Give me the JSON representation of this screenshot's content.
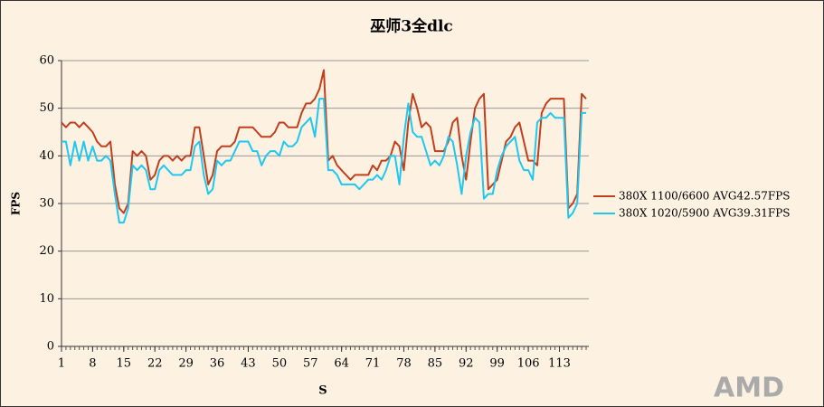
{
  "chart_data": {
    "type": "line",
    "title": "巫师3全dlc",
    "xlabel": "S",
    "ylabel": "FPS",
    "watermark": "AMD",
    "x": [
      1,
      2,
      3,
      4,
      5,
      6,
      7,
      8,
      9,
      10,
      11,
      12,
      13,
      14,
      15,
      16,
      17,
      18,
      19,
      20,
      21,
      22,
      23,
      24,
      25,
      26,
      27,
      28,
      29,
      30,
      31,
      32,
      33,
      34,
      35,
      36,
      37,
      38,
      39,
      40,
      41,
      42,
      43,
      44,
      45,
      46,
      47,
      48,
      49,
      50,
      51,
      52,
      53,
      54,
      55,
      56,
      57,
      58,
      59,
      60,
      61,
      62,
      63,
      64,
      65,
      66,
      67,
      68,
      69,
      70,
      71,
      72,
      73,
      74,
      75,
      76,
      77,
      78,
      79,
      80,
      81,
      82,
      83,
      84,
      85,
      86,
      87,
      88,
      89,
      90,
      91,
      92,
      93,
      94,
      95,
      96,
      97,
      98,
      99,
      100,
      101,
      102,
      103,
      104,
      105,
      106,
      107,
      108,
      109,
      110,
      111,
      112,
      113,
      114,
      115,
      116,
      117,
      118,
      119
    ],
    "xlim": [
      1,
      119
    ],
    "xticks": [
      1,
      8,
      15,
      22,
      29,
      36,
      43,
      50,
      57,
      64,
      71,
      78,
      85,
      92,
      99,
      106,
      113
    ],
    "ylim": [
      0,
      60
    ],
    "yticks": [
      0,
      10,
      20,
      30,
      40,
      50,
      60
    ],
    "grid": true,
    "legend": "right",
    "series": [
      {
        "name": "380X 1100/6600 AVG42.57FPS",
        "color": "#c0401e",
        "values": [
          47,
          46,
          47,
          47,
          46,
          47,
          46,
          45,
          43,
          42,
          42,
          43,
          34,
          29,
          28,
          30,
          41,
          40,
          41,
          40,
          35,
          36,
          39,
          40,
          40,
          39,
          40,
          39,
          40,
          40,
          46,
          46,
          40,
          34,
          36,
          41,
          42,
          42,
          42,
          43,
          46,
          46,
          46,
          46,
          45,
          44,
          44,
          44,
          45,
          47,
          47,
          46,
          46,
          46,
          49,
          51,
          51,
          52,
          54,
          58,
          39,
          40,
          38,
          37,
          36,
          35,
          36,
          36,
          36,
          36,
          38,
          37,
          39,
          39,
          40,
          43,
          42,
          37,
          47,
          53,
          50,
          46,
          47,
          46,
          41,
          41,
          41,
          43,
          47,
          48,
          40,
          35,
          43,
          50,
          52,
          53,
          33,
          34,
          35,
          39,
          43,
          44,
          46,
          47,
          43,
          39,
          39,
          38,
          49,
          51,
          52,
          52,
          52,
          52,
          29,
          30,
          32,
          53,
          52
        ]
      },
      {
        "name": "380X 1020/5900 AVG39.31FPS",
        "color": "#1ec8f0",
        "values": [
          43,
          43,
          38,
          43,
          39,
          43,
          39,
          42,
          39,
          39,
          40,
          39,
          32,
          26,
          26,
          29,
          38,
          37,
          38,
          37,
          33,
          33,
          37,
          38,
          37,
          36,
          36,
          36,
          37,
          37,
          42,
          43,
          36,
          32,
          33,
          39,
          38,
          39,
          39,
          41,
          43,
          43,
          43,
          41,
          41,
          38,
          40,
          41,
          41,
          40,
          43,
          42,
          42,
          43,
          46,
          47,
          48,
          44,
          52,
          52,
          37,
          37,
          36,
          34,
          34,
          34,
          34,
          33,
          34,
          35,
          35,
          36,
          35,
          37,
          40,
          40,
          34,
          44,
          51,
          45,
          44,
          44,
          41,
          38,
          39,
          38,
          40,
          44,
          43,
          38,
          32,
          40,
          45,
          48,
          47,
          31,
          32,
          32,
          37,
          40,
          42,
          43,
          44,
          39,
          37,
          37,
          35,
          47,
          48,
          48,
          49,
          48,
          48,
          48,
          27,
          28,
          30,
          49,
          49
        ]
      }
    ]
  }
}
